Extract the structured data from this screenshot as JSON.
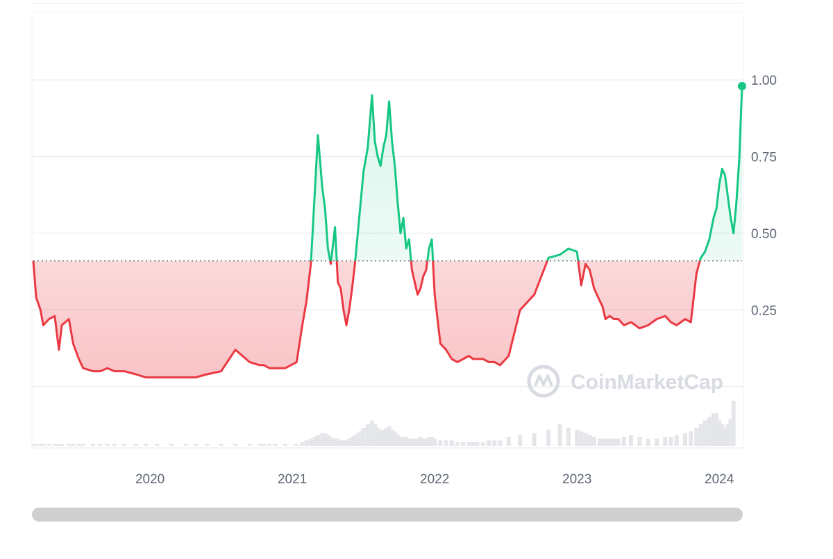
{
  "watermark": {
    "text": "CoinMarketCap",
    "icon": "coinmarketcap-logo-icon"
  },
  "colors": {
    "up": "#16c784",
    "down": "#ea3943",
    "baseline": "#6b7280",
    "grid": "#eef0f3",
    "volume": "#e4e6ea"
  },
  "chart_data": {
    "type": "line",
    "title": "",
    "xlabel": "",
    "ylabel": "",
    "baseline": 0.41,
    "ylim": [
      -0.2,
      1.22
    ],
    "xlim": [
      2019.18,
      2024.16
    ],
    "y_ticks": [
      {
        "value": 0.25,
        "label": "0.25"
      },
      {
        "value": 0.5,
        "label": "0.50"
      },
      {
        "value": 0.75,
        "label": "0.75"
      },
      {
        "value": 1.0,
        "label": "1.00"
      }
    ],
    "grid_lines": [
      -0.2,
      0.0,
      0.25,
      0.5,
      0.75,
      1.0,
      1.25
    ],
    "x_ticks": [
      {
        "value": 2020.0,
        "label": "2020"
      },
      {
        "value": 2021.0,
        "label": "2021"
      },
      {
        "value": 2022.0,
        "label": "2022"
      },
      {
        "value": 2023.0,
        "label": "2023"
      },
      {
        "value": 2024.0,
        "label": "2024"
      }
    ],
    "series": [
      {
        "x": [
          2019.18,
          2019.2,
          2019.23,
          2019.25,
          2019.29,
          2019.33,
          2019.36,
          2019.38,
          2019.43,
          2019.46,
          2019.5,
          2019.53,
          2019.6,
          2019.65,
          2019.7,
          2019.75,
          2019.82,
          2019.9,
          2019.97,
          2020.05,
          2020.15,
          2020.25,
          2020.32,
          2020.4,
          2020.5,
          2020.6,
          2020.7,
          2020.77,
          2020.8,
          2020.84,
          2020.88,
          2020.95,
          2021.03,
          2021.07,
          2021.1,
          2021.13,
          2021.16,
          2021.18,
          2021.21,
          2021.23,
          2021.25,
          2021.27,
          2021.3,
          2021.32,
          2021.34,
          2021.36,
          2021.38,
          2021.4,
          2021.42,
          2021.44,
          2021.46,
          2021.48,
          2021.5,
          2021.53,
          2021.56,
          2021.58,
          2021.6,
          2021.62,
          2021.64,
          2021.66,
          2021.68,
          2021.7,
          2021.72,
          2021.74,
          2021.76,
          2021.78,
          2021.8,
          2021.82,
          2021.84,
          2021.86,
          2021.88,
          2021.9,
          2021.92,
          2021.94,
          2021.96,
          2021.98,
          2022.0,
          2022.04,
          2022.08,
          2022.12,
          2022.16,
          2022.2,
          2022.24,
          2022.27,
          2022.3,
          2022.34,
          2022.38,
          2022.42,
          2022.46,
          2022.52,
          2022.6,
          2022.7,
          2022.8,
          2022.88,
          2022.94,
          2023.0,
          2023.03,
          2023.06,
          2023.09,
          2023.12,
          2023.16,
          2023.18,
          2023.2,
          2023.23,
          2023.26,
          2023.29,
          2023.33,
          2023.38,
          2023.44,
          2023.5,
          2023.56,
          2023.62,
          2023.66,
          2023.7,
          2023.76,
          2023.8,
          2023.84,
          2023.87,
          2023.9,
          2023.93,
          2023.96,
          2023.98,
          2024.0,
          2024.02,
          2024.04,
          2024.06,
          2024.08,
          2024.1,
          2024.12,
          2024.14,
          2024.16
        ],
        "y": [
          0.41,
          0.29,
          0.25,
          0.2,
          0.22,
          0.23,
          0.12,
          0.2,
          0.22,
          0.14,
          0.09,
          0.06,
          0.05,
          0.05,
          0.06,
          0.05,
          0.05,
          0.04,
          0.03,
          0.03,
          0.03,
          0.03,
          0.03,
          0.04,
          0.05,
          0.12,
          0.08,
          0.07,
          0.07,
          0.06,
          0.06,
          0.06,
          0.08,
          0.2,
          0.28,
          0.4,
          0.65,
          0.82,
          0.65,
          0.58,
          0.45,
          0.4,
          0.52,
          0.34,
          0.32,
          0.25,
          0.2,
          0.25,
          0.32,
          0.4,
          0.5,
          0.6,
          0.7,
          0.78,
          0.95,
          0.8,
          0.75,
          0.72,
          0.78,
          0.82,
          0.93,
          0.8,
          0.72,
          0.6,
          0.5,
          0.55,
          0.45,
          0.48,
          0.38,
          0.34,
          0.3,
          0.32,
          0.36,
          0.38,
          0.45,
          0.48,
          0.3,
          0.14,
          0.12,
          0.09,
          0.08,
          0.09,
          0.1,
          0.09,
          0.09,
          0.09,
          0.08,
          0.08,
          0.07,
          0.1,
          0.25,
          0.3,
          0.42,
          0.43,
          0.45,
          0.44,
          0.33,
          0.4,
          0.38,
          0.32,
          0.28,
          0.26,
          0.22,
          0.23,
          0.22,
          0.22,
          0.2,
          0.21,
          0.19,
          0.2,
          0.22,
          0.23,
          0.21,
          0.2,
          0.22,
          0.21,
          0.37,
          0.42,
          0.44,
          0.48,
          0.55,
          0.58,
          0.66,
          0.71,
          0.69,
          0.62,
          0.55,
          0.5,
          0.6,
          0.74,
          0.98
        ]
      }
    ],
    "volume": [
      0.01,
      0.01,
      0.01,
      0.01,
      0.01,
      0.01,
      0.01,
      0.01,
      0.01,
      0.01,
      0.01,
      0.01,
      0.01,
      0.01,
      0.01,
      0.01,
      0.01,
      0.01,
      0.01,
      0.01,
      0.01,
      0.01,
      0.01,
      0.01,
      0.01,
      0.01,
      0.01,
      0.01,
      0.01,
      0.01,
      0.01,
      0.01,
      0.01,
      0.02,
      0.03,
      0.04,
      0.05,
      0.06,
      0.07,
      0.07,
      0.06,
      0.05,
      0.04,
      0.04,
      0.03,
      0.03,
      0.03,
      0.04,
      0.05,
      0.06,
      0.07,
      0.08,
      0.1,
      0.12,
      0.14,
      0.12,
      0.1,
      0.09,
      0.09,
      0.1,
      0.11,
      0.09,
      0.08,
      0.06,
      0.05,
      0.05,
      0.05,
      0.04,
      0.04,
      0.04,
      0.04,
      0.05,
      0.04,
      0.04,
      0.05,
      0.05,
      0.04,
      0.03,
      0.03,
      0.03,
      0.02,
      0.02,
      0.02,
      0.02,
      0.02,
      0.02,
      0.03,
      0.03,
      0.03,
      0.05,
      0.06,
      0.07,
      0.09,
      0.12,
      0.1,
      0.09,
      0.08,
      0.07,
      0.06,
      0.05,
      0.04,
      0.04,
      0.04,
      0.04,
      0.04,
      0.04,
      0.05,
      0.06,
      0.05,
      0.04,
      0.04,
      0.05,
      0.05,
      0.06,
      0.07,
      0.08,
      0.1,
      0.12,
      0.14,
      0.16,
      0.18,
      0.18,
      0.14,
      0.12,
      0.1,
      0.12,
      0.15,
      0.25
    ]
  }
}
